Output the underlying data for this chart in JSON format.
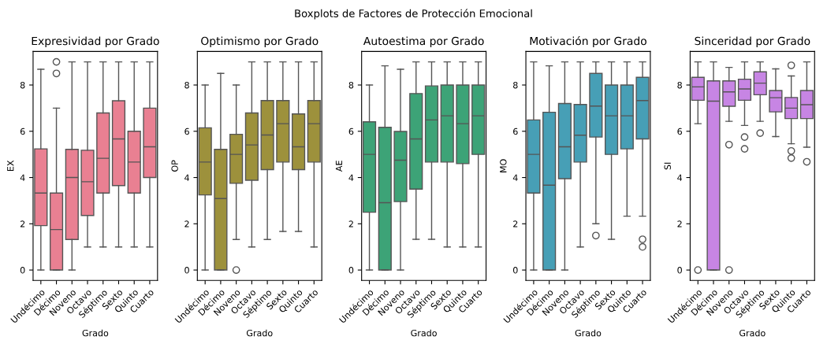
{
  "chart_data": [
    {
      "type": "box",
      "annotations": [
        "Boxplots de Factores de Protección Emocional"
      ],
      "title": "Expresividad por Grado",
      "xlabel": "Grado",
      "ylabel": "EX",
      "categories": [
        "Undécimo",
        "Décimo",
        "Noveno",
        "Octavo",
        "Séptimo",
        "Sexto",
        "Quinto",
        "Cuarto"
      ],
      "color": "#e98092",
      "ylim": [
        -0.45,
        9.45
      ],
      "yticks": [
        0,
        2,
        4,
        6,
        8
      ],
      "grid": false,
      "legend": false,
      "boxes": [
        {
          "low": 0,
          "q1": 1.92,
          "median": 3.33,
          "q3": 5.24,
          "high": 8.68
        },
        {
          "low": 0,
          "q1": 0,
          "median": 1.75,
          "q3": 3.33,
          "high": 7.0,
          "outliers": [
            8.5,
            9.0
          ]
        },
        {
          "low": 0,
          "q1": 1.32,
          "median": 4.0,
          "q3": 5.22,
          "high": 9
        },
        {
          "low": 1,
          "q1": 2.36,
          "median": 3.82,
          "q3": 5.18,
          "high": 9
        },
        {
          "low": 1,
          "q1": 3.33,
          "median": 4.83,
          "q3": 6.79,
          "high": 9
        },
        {
          "low": 1,
          "q1": 3.65,
          "median": 5.67,
          "q3": 7.32,
          "high": 9
        },
        {
          "low": 1,
          "q1": 3.33,
          "median": 4.67,
          "q3": 6.0,
          "high": 9
        },
        {
          "low": 1,
          "q1": 4.0,
          "median": 5.33,
          "q3": 7.0,
          "high": 9
        }
      ]
    },
    {
      "type": "box",
      "title": "Optimismo por Grado",
      "xlabel": "Grado",
      "ylabel": "OP",
      "categories": [
        "Undécimo",
        "Décimo",
        "Noveno",
        "Octavo",
        "Séptimo",
        "Sexto",
        "Quinto",
        "Cuarto"
      ],
      "color": "#9d913c",
      "ylim": [
        -0.45,
        9.45
      ],
      "yticks": [
        0,
        2,
        4,
        6,
        8
      ],
      "grid": false,
      "legend": false,
      "boxes": [
        {
          "low": 0,
          "q1": 3.25,
          "median": 4.67,
          "q3": 6.15,
          "high": 8
        },
        {
          "low": 0,
          "q1": 0,
          "median": 3.09,
          "q3": 5.22,
          "high": 8.5
        },
        {
          "low": 1.32,
          "q1": 3.75,
          "median": 5.0,
          "q3": 5.87,
          "high": 8,
          "outliers": [
            0
          ]
        },
        {
          "low": 1,
          "q1": 3.88,
          "median": 5.41,
          "q3": 6.79,
          "high": 9
        },
        {
          "low": 1.32,
          "q1": 4.34,
          "median": 5.84,
          "q3": 7.33,
          "high": 9
        },
        {
          "low": 1.67,
          "q1": 4.67,
          "median": 6.33,
          "q3": 7.33,
          "high": 9
        },
        {
          "low": 1.67,
          "q1": 4.34,
          "median": 5.33,
          "q3": 6.75,
          "high": 9
        },
        {
          "low": 1,
          "q1": 4.67,
          "median": 6.33,
          "q3": 7.33,
          "high": 9
        }
      ]
    },
    {
      "type": "box",
      "title": "Autoestima por Grado",
      "xlabel": "Grado",
      "ylabel": "AE",
      "categories": [
        "Undécimo",
        "Décimo",
        "Noveno",
        "Octavo",
        "Séptimo",
        "Sexto",
        "Quinto",
        "Cuarto"
      ],
      "color": "#3da377",
      "ylim": [
        -0.45,
        9.45
      ],
      "yticks": [
        0,
        2,
        4,
        6,
        8
      ],
      "grid": false,
      "legend": false,
      "boxes": [
        {
          "low": 0,
          "q1": 2.5,
          "median": 5.0,
          "q3": 6.41,
          "high": 8
        },
        {
          "low": 0,
          "q1": 0,
          "median": 2.91,
          "q3": 6.17,
          "high": 8.83
        },
        {
          "low": 0,
          "q1": 2.96,
          "median": 4.75,
          "q3": 5.99,
          "high": 8.68
        },
        {
          "low": 1.33,
          "q1": 3.5,
          "median": 5.67,
          "q3": 7.63,
          "high": 9
        },
        {
          "low": 1.33,
          "q1": 4.67,
          "median": 6.49,
          "q3": 7.96,
          "high": 9
        },
        {
          "low": 1,
          "q1": 4.67,
          "median": 6.67,
          "q3": 8,
          "high": 9
        },
        {
          "low": 1,
          "q1": 4.6,
          "median": 6.33,
          "q3": 8,
          "high": 9
        },
        {
          "low": 1,
          "q1": 5.0,
          "median": 6.67,
          "q3": 8,
          "high": 9
        }
      ]
    },
    {
      "type": "box",
      "title": "Motivación por Grado",
      "xlabel": "Grado",
      "ylabel": "MO",
      "categories": [
        "Undécimo",
        "Décimo",
        "Noveno",
        "Octavo",
        "Séptimo",
        "Sexto",
        "Quinto",
        "Cuarto"
      ],
      "color": "#479fb6",
      "ylim": [
        -0.45,
        9.45
      ],
      "yticks": [
        0,
        2,
        4,
        6,
        8
      ],
      "grid": false,
      "legend": false,
      "boxes": [
        {
          "low": 0,
          "q1": 3.33,
          "median": 5.0,
          "q3": 6.49,
          "high": 9
        },
        {
          "low": 0,
          "q1": 0,
          "median": 3.67,
          "q3": 6.82,
          "high": 8.83
        },
        {
          "low": 0,
          "q1": 3.95,
          "median": 5.33,
          "q3": 7.2,
          "high": 9
        },
        {
          "low": 1,
          "q1": 4.67,
          "median": 5.83,
          "q3": 7.16,
          "high": 9
        },
        {
          "low": 2.0,
          "q1": 5.75,
          "median": 7.09,
          "q3": 8.5,
          "high": 9,
          "outliers": [
            1.49
          ]
        },
        {
          "low": 1.33,
          "q1": 5.0,
          "median": 6.67,
          "q3": 8,
          "high": 9
        },
        {
          "low": 2.33,
          "q1": 5.24,
          "median": 6.67,
          "q3": 8,
          "high": 9
        },
        {
          "low": 2.33,
          "q1": 5.67,
          "median": 7.33,
          "q3": 8.33,
          "high": 9,
          "outliers": [
            1.33,
            1.0
          ]
        }
      ]
    },
    {
      "type": "box",
      "title": "Sinceridad por Grado",
      "xlabel": "Grado",
      "ylabel": "SI",
      "categories": [
        "Undécimo",
        "Décimo",
        "Noveno",
        "Octavo",
        "Séptimo",
        "Sexto",
        "Quinto",
        "Cuarto"
      ],
      "color": "#c785e4",
      "ylim": [
        -0.45,
        9.45
      ],
      "yticks": [
        0,
        2,
        4,
        6,
        8
      ],
      "grid": false,
      "legend": false,
      "boxes": [
        {
          "low": 6.33,
          "q1": 7.34,
          "median": 7.92,
          "q3": 8.33,
          "high": 9,
          "outliers": [
            0
          ]
        },
        {
          "low": 0,
          "q1": 0,
          "median": 7.3,
          "q3": 8.18,
          "high": 9
        },
        {
          "low": 6.43,
          "q1": 7.08,
          "median": 7.7,
          "q3": 8.18,
          "high": 8.76,
          "outliers": [
            5.42,
            0
          ]
        },
        {
          "low": 6.25,
          "q1": 7.34,
          "median": 7.83,
          "q3": 8.25,
          "high": 9,
          "outliers": [
            5.75,
            5.24
          ]
        },
        {
          "low": 6.43,
          "q1": 7.58,
          "median": 8.08,
          "q3": 8.57,
          "high": 9,
          "outliers": [
            5.92
          ]
        },
        {
          "low": 5.77,
          "q1": 6.84,
          "median": 7.45,
          "q3": 7.76,
          "high": 8.7
        },
        {
          "low": 5.46,
          "q1": 6.55,
          "median": 7.0,
          "q3": 7.46,
          "high": 8.39,
          "outliers": [
            8.85,
            5.15,
            4.84
          ]
        },
        {
          "low": 5.31,
          "q1": 6.55,
          "median": 7.15,
          "q3": 7.76,
          "high": 9,
          "outliers": [
            4.68
          ]
        }
      ]
    }
  ]
}
